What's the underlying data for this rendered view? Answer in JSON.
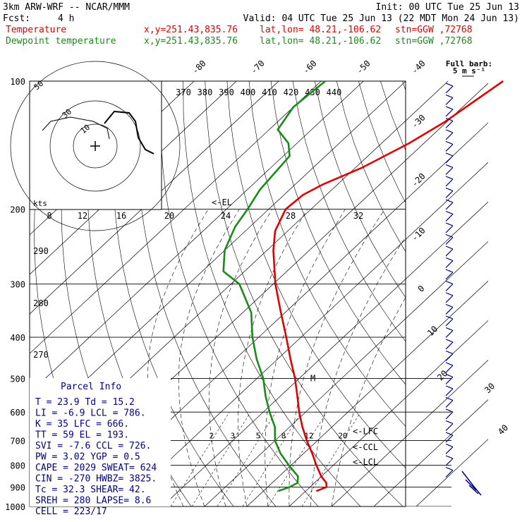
{
  "header": {
    "model": "3km ARW-WRF -- NCAR/MMM",
    "init": "Init: 00 UTC Tue 25 Jun 13",
    "fcst_label": "Fcst:",
    "fcst_value": "4 h",
    "valid": "Valid: 04 UTC Tue 25 Jun 13 (22 MDT Mon 24 Jun 13)"
  },
  "series_labels": [
    {
      "name": "Temperature",
      "xy": "x,y=251.43,835.76",
      "latlon": "lat,lon= 48.21,-106.62",
      "stn": "stn=GGW ,72768",
      "color": "#e00000"
    },
    {
      "name": "Dewpoint temperature",
      "xy": "x,y=251.43,835.76",
      "latlon": "lat,lon= 48.21,-106.62",
      "stn": "stn=GGW ,72768",
      "color": "#1a8a1a"
    }
  ],
  "wind_legend": {
    "line1": "Full barb:",
    "line2": "5 m s⁻¹"
  },
  "chart_data": {
    "type": "line",
    "title": "",
    "pressure_axis": {
      "scale": "log",
      "ylim": [
        1000,
        100
      ],
      "ticks": [
        100,
        200,
        300,
        400,
        500,
        600,
        700,
        800,
        900,
        1000
      ]
    },
    "isotherm_labels": [
      "-80",
      "-70",
      "-60",
      "-50",
      "-40",
      "-30",
      "-20",
      "-10",
      "0",
      "10",
      "20",
      "30",
      "40"
    ],
    "theta_labels": [
      "370",
      "380",
      "390",
      "400",
      "410",
      "420",
      "430",
      "440"
    ],
    "mixing_ratio_labels": [
      "2",
      "3",
      "5",
      "8",
      "12",
      "20"
    ],
    "hodograph_speed_labels": [
      "8",
      "12",
      "16",
      "20",
      "24",
      "28",
      "32"
    ],
    "hodograph_ring_labels": [
      "30",
      "10",
      "50"
    ],
    "hodograph_unit": "kts",
    "theta_left_labels": [
      "290",
      "280",
      "270"
    ],
    "series": [
      {
        "name": "Temperature",
        "color": "#e00000",
        "points": [
          [
            920,
            22.5
          ],
          [
            900,
            23.9
          ],
          [
            880,
            22.8
          ],
          [
            850,
            20.0
          ],
          [
            800,
            16.0
          ],
          [
            750,
            12.0
          ],
          [
            700,
            7.5
          ],
          [
            650,
            3.0
          ],
          [
            600,
            -1.5
          ],
          [
            550,
            -6.0
          ],
          [
            500,
            -11.0
          ],
          [
            450,
            -17.0
          ],
          [
            400,
            -23.5
          ],
          [
            350,
            -31.0
          ],
          [
            300,
            -39.5
          ],
          [
            250,
            -48.5
          ],
          [
            225,
            -53.0
          ],
          [
            200,
            -56.0
          ],
          [
            185,
            -55.5
          ],
          [
            175,
            -53.5
          ],
          [
            160,
            -48.5
          ],
          [
            140,
            -43.5
          ],
          [
            125,
            -40.5
          ],
          [
            110,
            -38.5
          ],
          [
            100,
            -37.0
          ]
        ]
      },
      {
        "name": "Dewpoint temperature",
        "color": "#1a8a1a",
        "points": [
          [
            920,
            13.5
          ],
          [
            900,
            15.2
          ],
          [
            880,
            16.0
          ],
          [
            850,
            14.5
          ],
          [
            800,
            9.5
          ],
          [
            750,
            4.5
          ],
          [
            700,
            0.0
          ],
          [
            650,
            -3.5
          ],
          [
            600,
            -8.5
          ],
          [
            550,
            -13.5
          ],
          [
            500,
            -18.5
          ],
          [
            450,
            -25.0
          ],
          [
            400,
            -31.5
          ],
          [
            350,
            -38.0
          ],
          [
            300,
            -48.0
          ],
          [
            280,
            -55.0
          ],
          [
            250,
            -60.0
          ],
          [
            220,
            -63.5
          ],
          [
            200,
            -65.0
          ],
          [
            180,
            -67.0
          ],
          [
            150,
            -68.5
          ],
          [
            140,
            -72.0
          ],
          [
            130,
            -78.0
          ],
          [
            115,
            -80.0
          ],
          [
            100,
            -79.0
          ]
        ]
      }
    ],
    "levels_marked": [
      {
        "label": "<-EL",
        "p": 193
      },
      {
        "label": "<-LFC",
        "p": 666
      },
      {
        "label": "<-CCL",
        "p": 726
      },
      {
        "label": "<-LCL",
        "p": 786
      },
      {
        "label": "M",
        "p": 500
      }
    ]
  },
  "parcel_info": {
    "title": "Parcel Info",
    "rows": [
      "T  =   23.9  Td =  15.2",
      "LI =   -6.9  LCL =  786.",
      "K  =     35  LFC =  666.",
      "TT =     59  EL  =  193.",
      "SVI =  -7.6  CCL =  726.",
      "PW =   3.02  YGP =   0.5",
      "CAPE = 2029  SWEAT=  624",
      "CIN =  -270  HWBZ= 3825.",
      "Tc =   32.3  SHEAR=  42.",
      "SREH =  280  LAPSE=  8.6",
      "CELL = 223/17"
    ]
  }
}
